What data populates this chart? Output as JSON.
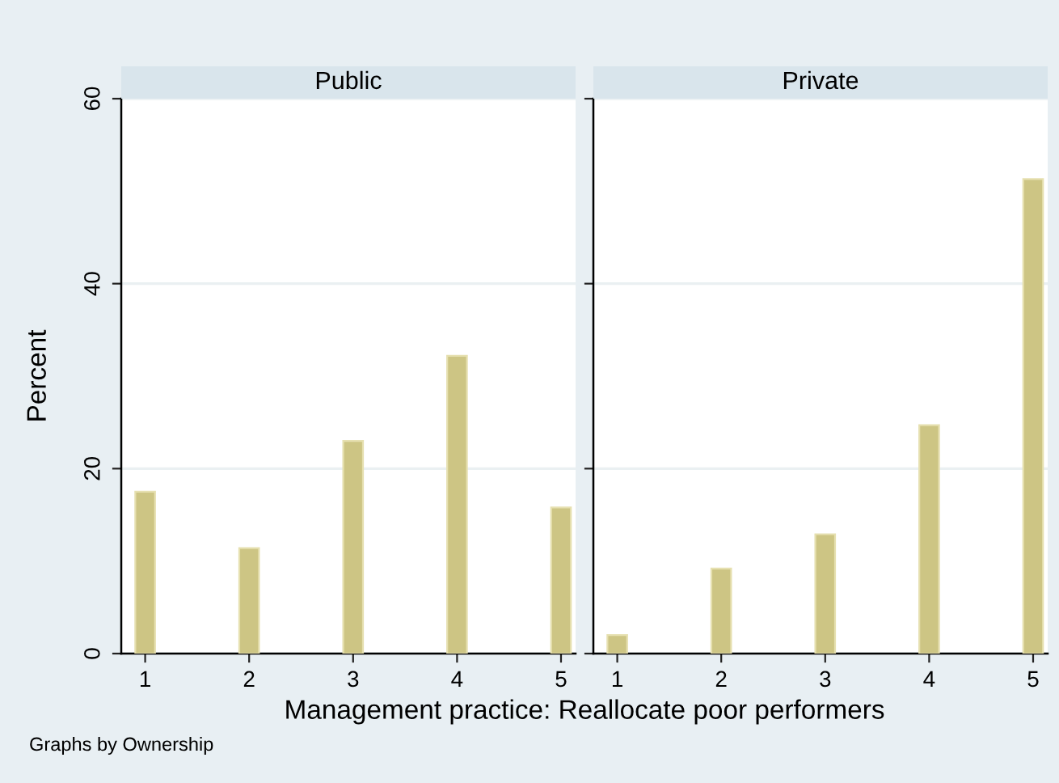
{
  "chart_data": [
    {
      "type": "bar",
      "title": "Public",
      "xlabel": "Management practice: Reallocate poor performers",
      "ylabel": "Percent",
      "annotations": [
        "Graphs by Ownership"
      ],
      "x": [
        1,
        2,
        3,
        4,
        5
      ],
      "values": [
        17.5,
        11.4,
        23.0,
        32.2,
        15.8
      ],
      "color": "#cdc584",
      "xlim": [
        0.77,
        5.14
      ],
      "xticks": [
        1,
        2,
        3,
        4,
        5
      ],
      "ylim": [
        0,
        60
      ],
      "yticks": [
        0,
        20,
        40,
        60
      ],
      "grid": "y"
    },
    {
      "type": "bar",
      "title": "Private",
      "x": [
        1,
        2,
        3,
        4,
        5
      ],
      "values": [
        2.0,
        9.2,
        12.9,
        24.7,
        51.3
      ],
      "color": "#cdc584",
      "xlim": [
        0.77,
        5.14
      ],
      "xticks": [
        1,
        2,
        3,
        4,
        5
      ],
      "ylim": [
        0,
        60
      ],
      "yticks": [
        0,
        20,
        40,
        60
      ],
      "grid": "y",
      "tick_labels": "x"
    }
  ]
}
